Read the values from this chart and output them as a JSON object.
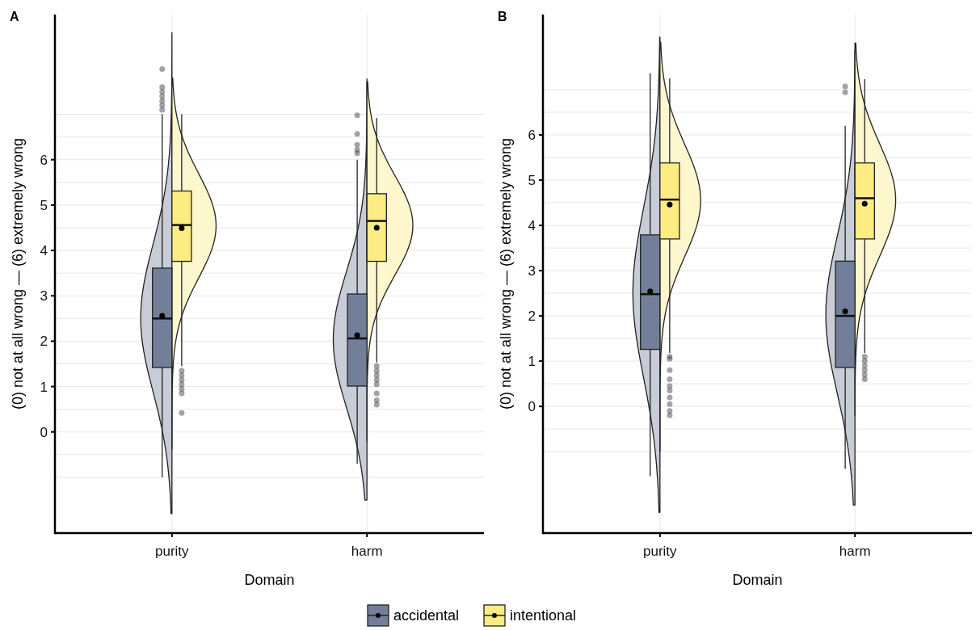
{
  "chart_data": [
    {
      "type": "box",
      "title": "A",
      "xlabel": "Domain",
      "ylabel": "(0) not at all wrong — (6) extremely wrong",
      "categories": [
        "purity",
        "harm"
      ],
      "ylim": [
        -2.23,
        9.2
      ],
      "yticks": [
        {
          "value": -1,
          "label": null
        },
        {
          "value": -0.5,
          "label": null
        },
        0,
        {
          "value": 0.5,
          "label": null
        },
        1,
        {
          "value": 1.5,
          "label": null
        },
        2,
        {
          "value": 2.5,
          "label": null
        },
        3,
        {
          "value": 3.5,
          "label": null
        },
        4,
        {
          "value": 4.5,
          "label": null
        },
        5,
        {
          "value": 5.5,
          "label": null
        },
        6,
        {
          "value": 6.5,
          "label": null
        },
        {
          "value": 7,
          "label": null
        }
      ],
      "grid": true,
      "legend": "bottom",
      "marker": "circle",
      "series": [
        {
          "name": "accidental",
          "color": "#737f99",
          "boxes": [
            {
              "low": -1,
              "q1": 1.42,
              "median": 2.5,
              "q3": 3.61,
              "high": 7,
              "mean": 2.56,
              "outliers": [
                7.1,
                7.2,
                7.3,
                7.4,
                7.5,
                7.6,
                8
              ]
            },
            {
              "low": -0.7,
              "q1": 1.01,
              "median": 2.06,
              "q3": 3.04,
              "high": 6,
              "mean": 2.13,
              "outliers": [
                6.14,
                6.22,
                6.33,
                6.57,
                6.98
              ]
            }
          ]
        },
        {
          "name": "intentional",
          "color": "#fdeb84",
          "boxes": [
            {
              "low": 1.45,
              "q1": 3.76,
              "median": 4.56,
              "q3": 5.31,
              "high": 7,
              "mean": 4.49,
              "outliers": [
                1.35,
                1.25,
                1.15,
                1.05,
                0.95,
                0.85,
                0.42
              ]
            },
            {
              "low": 1.53,
              "q1": 3.76,
              "median": 4.65,
              "q3": 5.25,
              "high": 6.92,
              "mean": 4.5,
              "outliers": [
                1.45,
                1.35,
                1.25,
                1.15,
                1.05,
                0.85,
                0.7,
                0.6
              ]
            }
          ]
        }
      ]
    },
    {
      "type": "box",
      "title": "B",
      "xlabel": "Domain",
      "ylabel": "(0) not at all wrong — (6) extremely wrong",
      "categories": [
        "purity",
        "harm"
      ],
      "ylim": [
        -2.8,
        8.66
      ],
      "yticks": [
        {
          "value": -1,
          "label": null
        },
        {
          "value": -0.5,
          "label": null
        },
        0,
        {
          "value": 0.5,
          "label": null
        },
        1,
        {
          "value": 1.5,
          "label": null
        },
        2,
        {
          "value": 2.5,
          "label": null
        },
        3,
        {
          "value": 3.5,
          "label": null
        },
        4,
        {
          "value": 4.5,
          "label": null
        },
        5,
        {
          "value": 5.5,
          "label": null
        },
        6,
        {
          "value": 6.5,
          "label": null
        },
        {
          "value": 7,
          "label": null
        }
      ],
      "grid": true,
      "marker": "circle",
      "series": [
        {
          "color": "#737f99",
          "boxes": [
            {
              "low": -1.54,
              "q1": 1.26,
              "median": 2.48,
              "q3": 3.79,
              "high": 7.36,
              "mean": 2.54
            },
            {
              "low": -1.38,
              "q1": 0.86,
              "median": 2,
              "q3": 3.21,
              "high": 6.2,
              "mean": 2.1,
              "outliers": [
                6.94,
                7.07
              ]
            }
          ]
        },
        {
          "color": "#fdeb84",
          "boxes": [
            {
              "low": 1.18,
              "q1": 3.7,
              "median": 4.57,
              "q3": 5.38,
              "high": 7.25,
              "mean": 4.46,
              "outliers": [
                1.1,
                1.05,
                0.8,
                0.6,
                0.45,
                0.35,
                0.2,
                0.05,
                -0.1,
                -0.2
              ]
            },
            {
              "low": 1.18,
              "q1": 3.7,
              "median": 4.6,
              "q3": 5.38,
              "high": 7.23,
              "mean": 4.48,
              "outliers": [
                1.1,
                1,
                0.9,
                0.8,
                0.7,
                0.6
              ]
            }
          ]
        }
      ]
    }
  ]
}
